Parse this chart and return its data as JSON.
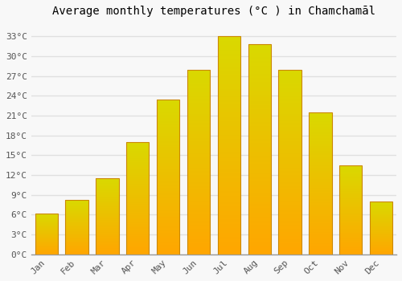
{
  "title": "Average monthly temperatures (°C ) in Chamchamāl",
  "months": [
    "Jan",
    "Feb",
    "Mar",
    "Apr",
    "May",
    "Jun",
    "Jul",
    "Aug",
    "Sep",
    "Oct",
    "Nov",
    "Dec"
  ],
  "values": [
    6.2,
    8.2,
    11.5,
    17.0,
    23.5,
    28.0,
    33.0,
    31.8,
    28.0,
    21.5,
    13.5,
    8.0
  ],
  "bar_color": "#FFA500",
  "bar_edge_color": "#CC7700",
  "ylim": [
    0,
    35
  ],
  "yticks": [
    0,
    3,
    6,
    9,
    12,
    15,
    18,
    21,
    24,
    27,
    30,
    33
  ],
  "ytick_labels": [
    "0°C",
    "3°C",
    "6°C",
    "9°C",
    "12°C",
    "15°C",
    "18°C",
    "21°C",
    "24°C",
    "27°C",
    "30°C",
    "33°C"
  ],
  "background_color": "#f8f8f8",
  "grid_color": "#e0e0e0",
  "title_fontsize": 10,
  "tick_fontsize": 8,
  "font_family": "monospace",
  "bar_width": 0.75,
  "figsize": [
    5.0,
    3.5
  ],
  "dpi": 100
}
